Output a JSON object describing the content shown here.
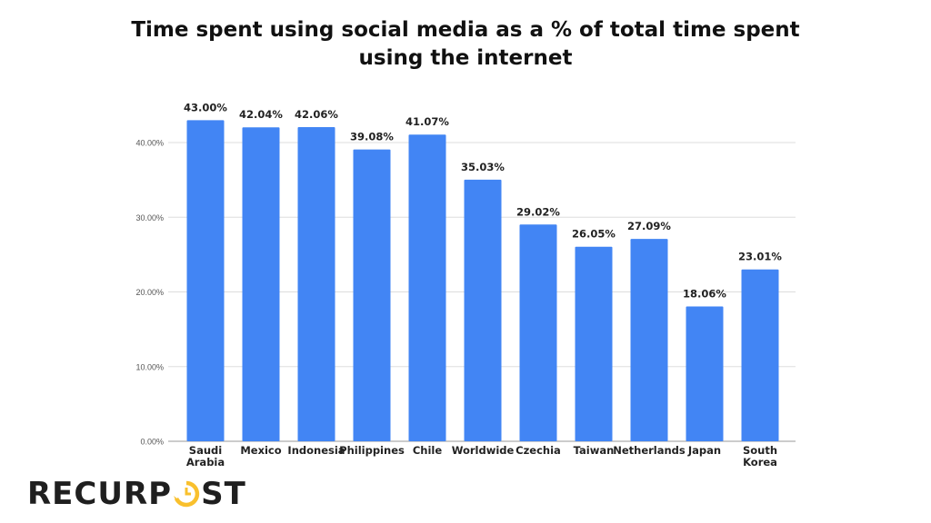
{
  "chart_data": {
    "type": "bar",
    "title": "Time spent using social media as a % of total time spent using the internet",
    "title_lines": [
      "Time spent using social media as a % of total time spent",
      "using the internet"
    ],
    "categories": [
      [
        "Saudi",
        "Arabia"
      ],
      [
        "Mexico"
      ],
      [
        "Indonesia"
      ],
      [
        "Philippines"
      ],
      [
        "Chile"
      ],
      [
        "Worldwide"
      ],
      [
        "Czechia"
      ],
      [
        "Taiwan"
      ],
      [
        "Netherlands"
      ],
      [
        "Japan"
      ],
      [
        "South",
        "Korea"
      ]
    ],
    "values": [
      43.0,
      42.04,
      42.06,
      39.08,
      41.07,
      35.03,
      29.02,
      26.05,
      27.09,
      18.06,
      23.01
    ],
    "data_labels": [
      "43.00%",
      "42.04%",
      "42.06%",
      "39.08%",
      "41.07%",
      "35.03%",
      "29.02%",
      "26.05%",
      "27.09%",
      "18.06%",
      "23.01%"
    ],
    "yticks": [
      0,
      10,
      20,
      30,
      40
    ],
    "ytick_labels": [
      "0.00%",
      "10.00%",
      "20.00%",
      "30.00%",
      "40.00%"
    ],
    "ylim": [
      0,
      43
    ],
    "xlabel": "",
    "ylabel": "",
    "grid": true,
    "legend": "none",
    "bar_color": "#4285f4"
  },
  "logo": {
    "text_left": "RECURP",
    "text_right": "ST",
    "full": "RECURPOST",
    "accent_color": "#f9c02d"
  }
}
